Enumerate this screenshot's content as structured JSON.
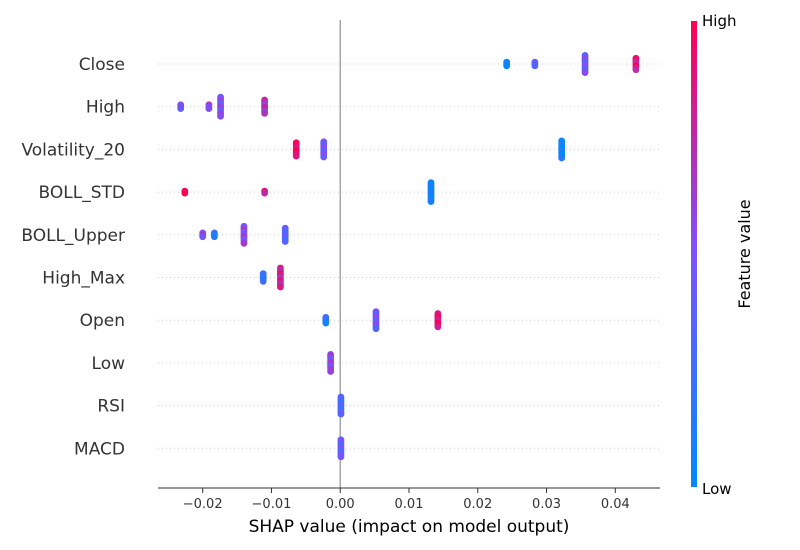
{
  "chart_data": {
    "type": "scatter",
    "subtype": "shap-beeswarm",
    "xlabel": "SHAP value (impact on model output)",
    "xlim": [
      -0.0265,
      0.0465
    ],
    "xticks": [
      -0.02,
      -0.01,
      0.0,
      0.01,
      0.02,
      0.03,
      0.04
    ],
    "xtick_labels": [
      "−0.02",
      "−0.01",
      "0.00",
      "0.01",
      "0.02",
      "0.03",
      "0.04"
    ],
    "zero_line": 0.0,
    "colorbar": {
      "title": "Feature value",
      "high_label": "High",
      "low_label": "Low",
      "low_color": "#008bfb",
      "mid_color": "#7c52ff",
      "high_color": "#ff0052"
    },
    "features": [
      {
        "name": "Close",
        "points": [
          {
            "x": 0.0242,
            "v": 0.05,
            "n": 3
          },
          {
            "x": 0.0283,
            "v": 0.4,
            "n": 3
          },
          {
            "x": 0.0356,
            "v": 0.45,
            "n": 10
          },
          {
            "x": 0.043,
            "v": 0.85,
            "n": 7
          }
        ]
      },
      {
        "name": "High",
        "points": [
          {
            "x": -0.0232,
            "v": 0.45,
            "n": 3
          },
          {
            "x": -0.0191,
            "v": 0.6,
            "n": 3
          },
          {
            "x": -0.0174,
            "v": 0.5,
            "n": 11
          },
          {
            "x": -0.011,
            "v": 0.7,
            "n": 8
          }
        ]
      },
      {
        "name": "Volatility_20",
        "points": [
          {
            "x": -0.0064,
            "v": 0.95,
            "n": 8
          },
          {
            "x": -0.0024,
            "v": 0.45,
            "n": 9
          },
          {
            "x": 0.0322,
            "v": 0.05,
            "n": 10
          }
        ]
      },
      {
        "name": "BOLL_STD",
        "points": [
          {
            "x": -0.0226,
            "v": 0.95,
            "n": 2
          },
          {
            "x": -0.011,
            "v": 0.85,
            "n": 2
          },
          {
            "x": 0.0132,
            "v": 0.05,
            "n": 11
          }
        ]
      },
      {
        "name": "BOLL_Upper",
        "points": [
          {
            "x": -0.02,
            "v": 0.5,
            "n": 3
          },
          {
            "x": -0.0183,
            "v": 0.2,
            "n": 3
          },
          {
            "x": -0.014,
            "v": 0.55,
            "n": 10
          },
          {
            "x": -0.008,
            "v": 0.35,
            "n": 8
          }
        ]
      },
      {
        "name": "High_Max",
        "points": [
          {
            "x": -0.0112,
            "v": 0.2,
            "n": 5
          },
          {
            "x": -0.0087,
            "v": 0.8,
            "n": 11
          }
        ]
      },
      {
        "name": "Open",
        "points": [
          {
            "x": -0.0021,
            "v": 0.2,
            "n": 4
          },
          {
            "x": 0.0052,
            "v": 0.45,
            "n": 10
          },
          {
            "x": 0.0142,
            "v": 0.9,
            "n": 8
          }
        ]
      },
      {
        "name": "Low",
        "points": [
          {
            "x": -0.0014,
            "v": 0.55,
            "n": 10
          }
        ]
      },
      {
        "name": "RSI",
        "points": [
          {
            "x": 0.0001,
            "v": 0.3,
            "n": 10
          }
        ]
      },
      {
        "name": "MACD",
        "points": [
          {
            "x": 0.0001,
            "v": 0.4,
            "n": 10
          }
        ]
      }
    ]
  }
}
